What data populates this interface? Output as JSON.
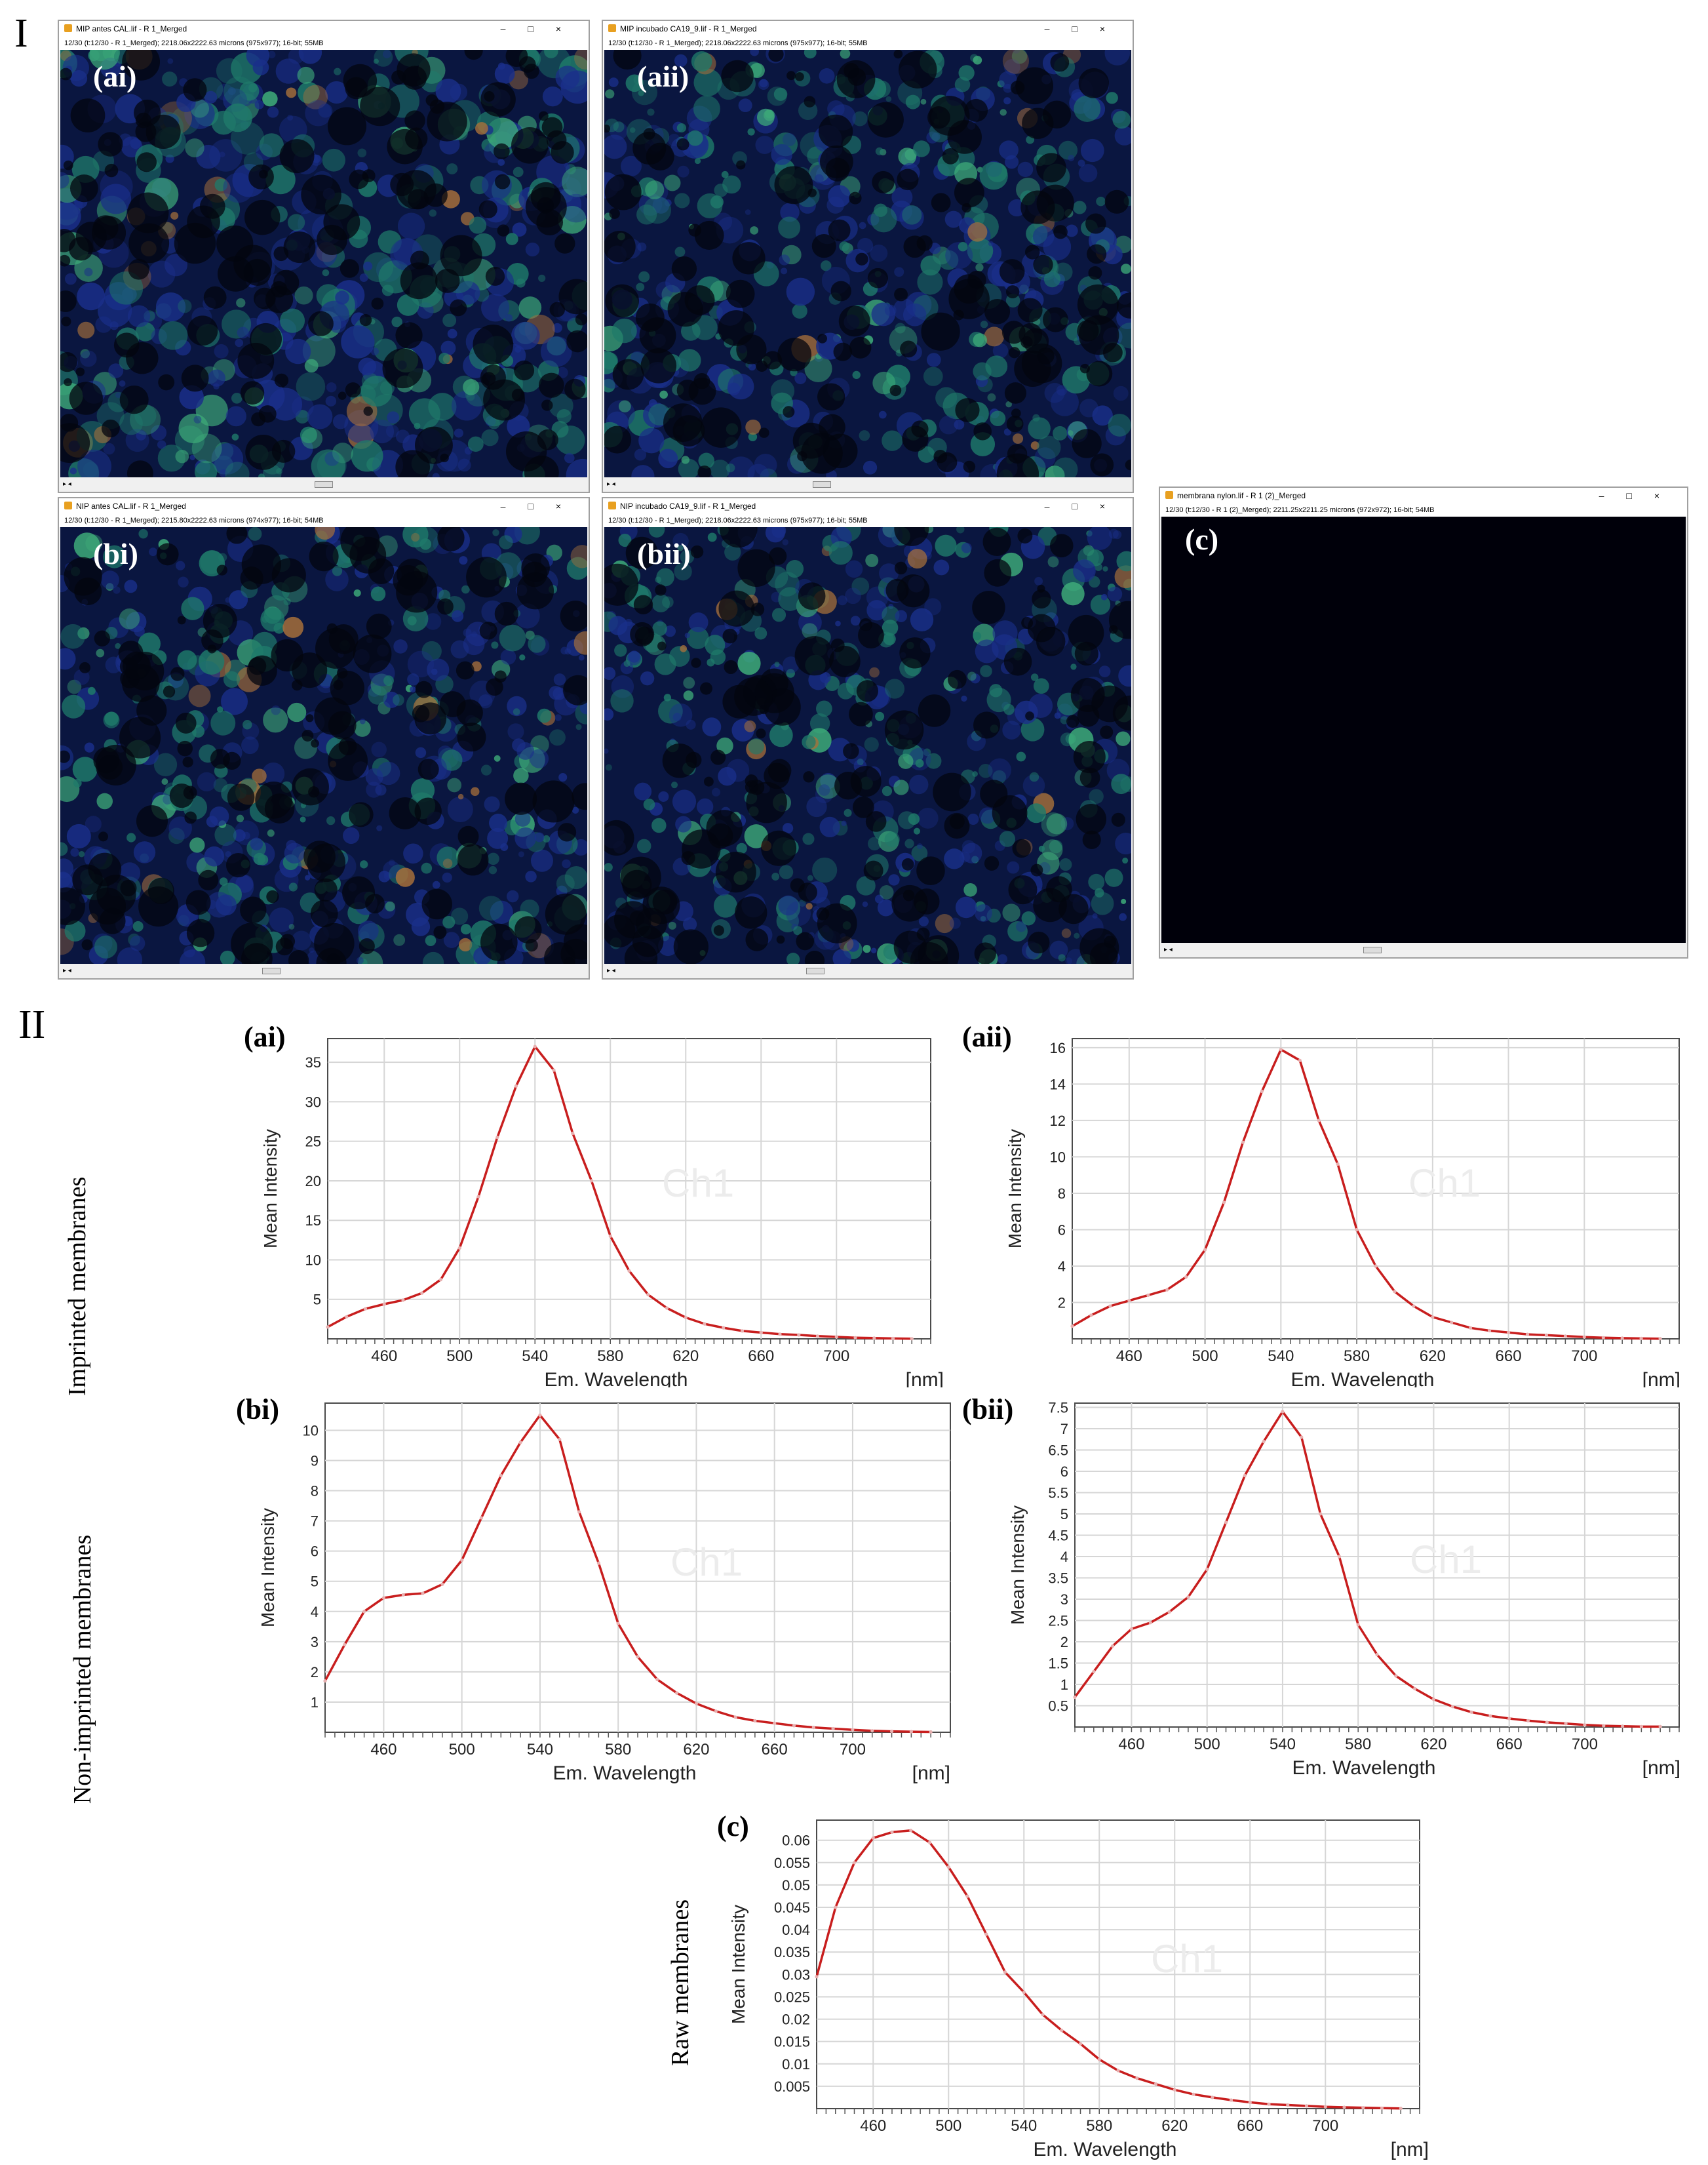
{
  "section_I": "I",
  "section_II": "II",
  "windows": [
    {
      "id": "ai",
      "label": "(ai)",
      "title": "MIP antes CAL.lif - R 1_Merged",
      "info": "12/30 (t:12/30 - R 1_Merged); 2218.06x2222.63 microns (975x977); 16-bit; 55MB",
      "intensity": 1.0,
      "seed": 11
    },
    {
      "id": "aii",
      "label": "(aii)",
      "title": "MIP incubado CA19_9.lif - R 1_Merged",
      "info": "12/30 (t:12/30 - R 1_Merged); 2218.06x2222.63 microns (975x977); 16-bit; 55MB",
      "intensity": 0.8,
      "seed": 23
    },
    {
      "id": "bi",
      "label": "(bi)",
      "title": "NIP antes CAL.lif - R 1_Merged",
      "info": "12/30 (t:12/30 - R 1_Merged); 2215.80x2222.63 microns (974x977); 16-bit; 54MB",
      "intensity": 0.75,
      "seed": 37
    },
    {
      "id": "bii",
      "label": "(bii)",
      "title": "NIP incubado CA19_9.lif - R 1_Merged",
      "info": "12/30 (t:12/30 - R 1_Merged); 2218.06x2222.63 microns (975x977); 16-bit; 55MB",
      "intensity": 0.7,
      "seed": 53
    },
    {
      "id": "c",
      "label": "(c)",
      "title": "membrana nylon.lif - R 1 (2)_Merged",
      "info": "12/30 (t:12/30 - R 1 (2)_Merged); 2211.25x2211.25 microns (972x972); 16-bit; 54MB",
      "intensity": 0.0,
      "seed": 71
    }
  ],
  "row_labels": {
    "imprinted": "Imprinted membranes",
    "non_imprinted": "Non-imprinted membranes",
    "raw": "Raw membranes"
  },
  "chart_data": [
    {
      "id": "ai",
      "label": "(ai)",
      "type": "line",
      "title": "",
      "xlabel": "Em. Wavelength",
      "xunit": "[nm]",
      "ylabel": "Mean Intensity",
      "watermark": "Ch1",
      "xlim": [
        430,
        750
      ],
      "ylim": [
        0,
        38
      ],
      "xticks": [
        460,
        500,
        540,
        580,
        620,
        660,
        700
      ],
      "yticks": [
        5,
        10,
        15,
        20,
        25,
        30,
        35
      ],
      "series": [
        {
          "color": "#c81e1e",
          "x": [
            430,
            440,
            450,
            460,
            470,
            480,
            490,
            500,
            510,
            520,
            530,
            540,
            550,
            560,
            570,
            580,
            590,
            600,
            610,
            620,
            630,
            640,
            650,
            660,
            670,
            680,
            690,
            700,
            710,
            720,
            730,
            740
          ],
          "y": [
            1.5,
            2.8,
            3.8,
            4.4,
            4.9,
            5.8,
            7.5,
            11.5,
            18,
            25.5,
            32,
            37,
            34,
            26,
            20,
            13,
            8.6,
            5.6,
            3.9,
            2.7,
            1.9,
            1.4,
            1.0,
            0.8,
            0.6,
            0.5,
            0.35,
            0.25,
            0.15,
            0.1,
            0.05,
            0.02
          ]
        }
      ]
    },
    {
      "id": "aii",
      "label": "(aii)",
      "type": "line",
      "title": "",
      "xlabel": "Em. Wavelength",
      "xunit": "[nm]",
      "ylabel": "Mean Intensity",
      "watermark": "Ch1",
      "xlim": [
        430,
        750
      ],
      "ylim": [
        0,
        16.5
      ],
      "xticks": [
        460,
        500,
        540,
        580,
        620,
        660,
        700
      ],
      "yticks": [
        2,
        4,
        6,
        8,
        10,
        12,
        14,
        16
      ],
      "series": [
        {
          "color": "#c81e1e",
          "x": [
            430,
            440,
            450,
            460,
            470,
            480,
            490,
            500,
            510,
            520,
            530,
            540,
            550,
            560,
            570,
            580,
            590,
            600,
            610,
            620,
            630,
            640,
            650,
            660,
            670,
            680,
            690,
            700,
            710,
            720,
            730,
            740
          ],
          "y": [
            0.7,
            1.3,
            1.8,
            2.1,
            2.4,
            2.7,
            3.4,
            4.9,
            7.5,
            10.8,
            13.6,
            15.9,
            15.3,
            12,
            9.6,
            6,
            4,
            2.6,
            1.8,
            1.2,
            0.9,
            0.6,
            0.45,
            0.35,
            0.25,
            0.2,
            0.15,
            0.1,
            0.06,
            0.04,
            0.02,
            0.01
          ]
        }
      ]
    },
    {
      "id": "bi",
      "label": "(bi)",
      "type": "line",
      "title": "",
      "xlabel": "Em. Wavelength",
      "xunit": "[nm]",
      "ylabel": "Mean Intensity",
      "watermark": "Ch1",
      "xlim": [
        430,
        750
      ],
      "ylim": [
        0,
        10.9
      ],
      "xticks": [
        460,
        500,
        540,
        580,
        620,
        660,
        700
      ],
      "yticks": [
        1,
        2,
        3,
        4,
        5,
        6,
        7,
        8,
        9,
        10
      ],
      "series": [
        {
          "color": "#c81e1e",
          "x": [
            430,
            440,
            450,
            460,
            470,
            480,
            490,
            500,
            510,
            520,
            530,
            540,
            550,
            560,
            570,
            580,
            590,
            600,
            610,
            620,
            630,
            640,
            650,
            660,
            670,
            680,
            690,
            700,
            710,
            720,
            730,
            740
          ],
          "y": [
            1.7,
            2.9,
            4.0,
            4.45,
            4.55,
            4.6,
            4.9,
            5.7,
            7.1,
            8.5,
            9.6,
            10.5,
            9.7,
            7.3,
            5.6,
            3.6,
            2.5,
            1.75,
            1.3,
            0.95,
            0.7,
            0.5,
            0.38,
            0.3,
            0.22,
            0.16,
            0.12,
            0.08,
            0.05,
            0.03,
            0.02,
            0.01
          ]
        }
      ]
    },
    {
      "id": "bii",
      "label": "(bii)",
      "type": "line",
      "title": "",
      "xlabel": "Em. Wavelength",
      "xunit": "[nm]",
      "ylabel": "Mean Intensity",
      "watermark": "Ch1",
      "xlim": [
        430,
        750
      ],
      "ylim": [
        0,
        7.6
      ],
      "xticks": [
        460,
        500,
        540,
        580,
        620,
        660,
        700
      ],
      "yticks": [
        0.5,
        1,
        1.5,
        2,
        2.5,
        3,
        3.5,
        4,
        4.5,
        5,
        5.5,
        6,
        6.5,
        7,
        7.5
      ],
      "series": [
        {
          "color": "#c81e1e",
          "x": [
            430,
            440,
            450,
            460,
            470,
            480,
            490,
            500,
            510,
            520,
            530,
            540,
            550,
            560,
            570,
            580,
            590,
            600,
            610,
            620,
            630,
            640,
            650,
            660,
            670,
            680,
            690,
            700,
            710,
            720,
            730,
            740
          ],
          "y": [
            0.7,
            1.3,
            1.9,
            2.3,
            2.45,
            2.7,
            3.05,
            3.7,
            4.8,
            5.9,
            6.7,
            7.4,
            6.8,
            5.0,
            4.0,
            2.4,
            1.7,
            1.2,
            0.9,
            0.65,
            0.48,
            0.35,
            0.26,
            0.2,
            0.15,
            0.11,
            0.08,
            0.05,
            0.03,
            0.02,
            0.01,
            0.01
          ]
        }
      ]
    },
    {
      "id": "c",
      "label": "(c)",
      "type": "line",
      "title": "",
      "xlabel": "Em. Wavelength",
      "xunit": "[nm]",
      "ylabel": "Mean Intensity",
      "watermark": "Ch1",
      "xlim": [
        430,
        750
      ],
      "ylim": [
        0,
        0.0645
      ],
      "xticks": [
        460,
        500,
        540,
        580,
        620,
        660,
        700
      ],
      "yticks": [
        0.005,
        0.01,
        0.015,
        0.02,
        0.025,
        0.03,
        0.035,
        0.04,
        0.045,
        0.05,
        0.055,
        0.06
      ],
      "series": [
        {
          "color": "#c81e1e",
          "x": [
            430,
            440,
            450,
            460,
            470,
            480,
            490,
            500,
            510,
            520,
            530,
            540,
            550,
            560,
            570,
            580,
            590,
            600,
            610,
            620,
            630,
            640,
            650,
            660,
            670,
            680,
            690,
            700,
            710,
            720,
            730,
            740
          ],
          "y": [
            0.0295,
            0.045,
            0.055,
            0.0605,
            0.0618,
            0.0622,
            0.0595,
            0.054,
            0.0475,
            0.039,
            0.0305,
            0.026,
            0.021,
            0.0175,
            0.0145,
            0.011,
            0.0085,
            0.0068,
            0.0055,
            0.0042,
            0.0032,
            0.0025,
            0.0019,
            0.0014,
            0.001,
            0.0008,
            0.0006,
            0.0004,
            0.0003,
            0.0002,
            0.0001,
            5e-05
          ]
        }
      ]
    }
  ]
}
